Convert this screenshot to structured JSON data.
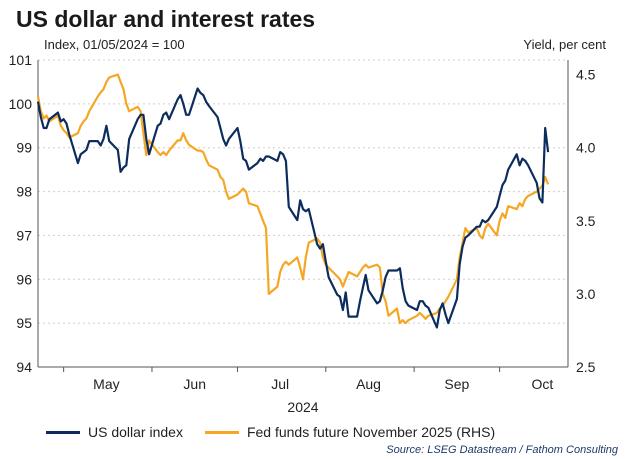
{
  "title": "US dollar and interest rates",
  "subtitle_left": "Index, 01/05/2024 = 100",
  "subtitle_right": "Yield, per cent",
  "source": "Source: LSEG Datastream / Fathom Consulting",
  "colors": {
    "dollar": "#0d2c5e",
    "fed": "#f5a623",
    "grid": "#cfcfcf"
  },
  "chart_data": {
    "type": "line",
    "xlabel": "2024",
    "x_ticks": [
      "May",
      "Jun",
      "Jul",
      "Aug",
      "Sep",
      "Oct"
    ],
    "x_range": [
      "2024-04-22",
      "2024-10-25"
    ],
    "left_axis": {
      "ylim": [
        94,
        101
      ],
      "ticks": [
        "94",
        "95",
        "96",
        "97",
        "98",
        "99",
        "100",
        "101"
      ]
    },
    "right_axis": {
      "ylim": [
        2.5,
        4.6
      ],
      "ticks": [
        "2.5",
        "3.0",
        "3.5",
        "4.0",
        "4.5"
      ]
    },
    "grid": "horizontal dotted",
    "legend_position": "bottom",
    "series": [
      {
        "name": "US dollar index",
        "axis": "left",
        "color": "#0d2c5e",
        "points": [
          [
            "2024-04-22",
            100.05
          ],
          [
            "2024-04-23",
            99.7
          ],
          [
            "2024-04-24",
            99.45
          ],
          [
            "2024-04-25",
            99.45
          ],
          [
            "2024-04-26",
            99.65
          ],
          [
            "2024-04-29",
            99.8
          ],
          [
            "2024-04-30",
            99.6
          ],
          [
            "2024-05-01",
            99.65
          ],
          [
            "2024-05-02",
            99.55
          ],
          [
            "2024-05-03",
            99.3
          ],
          [
            "2024-05-06",
            98.65
          ],
          [
            "2024-05-07",
            98.85
          ],
          [
            "2024-05-08",
            98.9
          ],
          [
            "2024-05-09",
            98.95
          ],
          [
            "2024-05-10",
            99.15
          ],
          [
            "2024-05-13",
            99.15
          ],
          [
            "2024-05-14",
            99.05
          ],
          [
            "2024-05-15",
            99.2
          ],
          [
            "2024-05-16",
            99.5
          ],
          [
            "2024-05-17",
            99.15
          ],
          [
            "2024-05-20",
            98.95
          ],
          [
            "2024-05-21",
            98.45
          ],
          [
            "2024-05-22",
            98.55
          ],
          [
            "2024-05-23",
            98.6
          ],
          [
            "2024-05-24",
            99.2
          ],
          [
            "2024-05-27",
            99.65
          ],
          [
            "2024-05-28",
            99.75
          ],
          [
            "2024-05-29",
            99.75
          ],
          [
            "2024-05-30",
            99.2
          ],
          [
            "2024-05-31",
            98.85
          ],
          [
            "2024-06-03",
            99.5
          ],
          [
            "2024-06-04",
            99.55
          ],
          [
            "2024-06-05",
            99.75
          ],
          [
            "2024-06-06",
            99.8
          ],
          [
            "2024-06-07",
            99.65
          ],
          [
            "2024-06-10",
            100.1
          ],
          [
            "2024-06-11",
            100.2
          ],
          [
            "2024-06-12",
            100.0
          ],
          [
            "2024-06-13",
            99.75
          ],
          [
            "2024-06-14",
            99.75
          ],
          [
            "2024-06-17",
            100.35
          ],
          [
            "2024-06-18",
            100.25
          ],
          [
            "2024-06-19",
            100.2
          ],
          [
            "2024-06-20",
            100.05
          ],
          [
            "2024-06-21",
            99.95
          ],
          [
            "2024-06-24",
            99.7
          ],
          [
            "2024-06-25",
            99.45
          ],
          [
            "2024-06-26",
            99.2
          ],
          [
            "2024-06-27",
            99.05
          ],
          [
            "2024-06-28",
            99.2
          ],
          [
            "2024-07-01",
            99.45
          ],
          [
            "2024-07-02",
            99.15
          ],
          [
            "2024-07-03",
            98.75
          ],
          [
            "2024-07-04",
            98.7
          ],
          [
            "2024-07-05",
            98.5
          ],
          [
            "2024-07-08",
            98.65
          ],
          [
            "2024-07-09",
            98.75
          ],
          [
            "2024-07-10",
            98.7
          ],
          [
            "2024-07-11",
            98.8
          ],
          [
            "2024-07-12",
            98.8
          ],
          [
            "2024-07-15",
            98.7
          ],
          [
            "2024-07-16",
            98.9
          ],
          [
            "2024-07-17",
            98.85
          ],
          [
            "2024-07-18",
            98.7
          ],
          [
            "2024-07-19",
            97.65
          ],
          [
            "2024-07-22",
            97.35
          ],
          [
            "2024-07-23",
            97.8
          ],
          [
            "2024-07-24",
            97.6
          ],
          [
            "2024-07-25",
            97.55
          ],
          [
            "2024-07-26",
            97.6
          ],
          [
            "2024-07-29",
            96.8
          ],
          [
            "2024-07-30",
            96.7
          ],
          [
            "2024-07-31",
            96.8
          ],
          [
            "2024-08-01",
            96.4
          ],
          [
            "2024-08-02",
            96.05
          ],
          [
            "2024-08-05",
            95.65
          ],
          [
            "2024-08-06",
            95.6
          ],
          [
            "2024-08-07",
            95.3
          ],
          [
            "2024-08-08",
            95.7
          ],
          [
            "2024-08-09",
            95.15
          ],
          [
            "2024-08-12",
            95.15
          ],
          [
            "2024-08-13",
            95.5
          ],
          [
            "2024-08-14",
            95.8
          ],
          [
            "2024-08-15",
            96.1
          ],
          [
            "2024-08-16",
            95.75
          ],
          [
            "2024-08-19",
            95.45
          ],
          [
            "2024-08-20",
            95.5
          ],
          [
            "2024-08-21",
            95.75
          ],
          [
            "2024-08-22",
            96.05
          ],
          [
            "2024-08-23",
            96.2
          ],
          [
            "2024-08-26",
            96.2
          ],
          [
            "2024-08-27",
            96.25
          ],
          [
            "2024-08-28",
            95.8
          ],
          [
            "2024-08-29",
            95.5
          ],
          [
            "2024-08-30",
            95.4
          ],
          [
            "2024-09-02",
            95.3
          ],
          [
            "2024-09-03",
            95.5
          ],
          [
            "2024-09-04",
            95.5
          ],
          [
            "2024-09-05",
            95.4
          ],
          [
            "2024-09-06",
            95.35
          ],
          [
            "2024-09-09",
            94.9
          ],
          [
            "2024-09-10",
            95.3
          ],
          [
            "2024-09-11",
            95.45
          ],
          [
            "2024-09-12",
            95.2
          ],
          [
            "2024-09-13",
            95.0
          ],
          [
            "2024-09-16",
            95.55
          ],
          [
            "2024-09-17",
            96.35
          ],
          [
            "2024-09-18",
            96.75
          ],
          [
            "2024-09-19",
            96.95
          ],
          [
            "2024-09-20",
            97.0
          ],
          [
            "2024-09-23",
            97.2
          ],
          [
            "2024-09-24",
            97.2
          ],
          [
            "2024-09-25",
            97.35
          ],
          [
            "2024-09-26",
            97.3
          ],
          [
            "2024-09-27",
            97.35
          ],
          [
            "2024-09-30",
            97.65
          ],
          [
            "2024-10-01",
            97.9
          ],
          [
            "2024-10-02",
            98.15
          ],
          [
            "2024-10-03",
            98.25
          ],
          [
            "2024-10-04",
            98.5
          ],
          [
            "2024-10-07",
            98.85
          ],
          [
            "2024-10-08",
            98.6
          ],
          [
            "2024-10-09",
            98.75
          ],
          [
            "2024-10-10",
            98.7
          ],
          [
            "2024-10-11",
            98.6
          ],
          [
            "2024-10-14",
            98.2
          ],
          [
            "2024-10-15",
            97.85
          ],
          [
            "2024-10-16",
            97.75
          ],
          [
            "2024-10-17",
            99.45
          ],
          [
            "2024-10-18",
            98.9
          ]
        ]
      },
      {
        "name": "Fed funds future November 2025 (RHS)",
        "axis": "right",
        "color": "#f5a623",
        "points": [
          [
            "2024-04-22",
            4.35
          ],
          [
            "2024-04-23",
            4.25
          ],
          [
            "2024-04-24",
            4.2
          ],
          [
            "2024-04-25",
            4.22
          ],
          [
            "2024-04-26",
            4.18
          ],
          [
            "2024-04-29",
            4.22
          ],
          [
            "2024-04-30",
            4.15
          ],
          [
            "2024-05-01",
            4.12
          ],
          [
            "2024-05-02",
            4.1
          ],
          [
            "2024-05-03",
            4.07
          ],
          [
            "2024-05-06",
            4.1
          ],
          [
            "2024-05-07",
            4.15
          ],
          [
            "2024-05-08",
            4.18
          ],
          [
            "2024-05-09",
            4.2
          ],
          [
            "2024-05-10",
            4.25
          ],
          [
            "2024-05-13",
            4.35
          ],
          [
            "2024-05-14",
            4.38
          ],
          [
            "2024-05-15",
            4.4
          ],
          [
            "2024-05-16",
            4.45
          ],
          [
            "2024-05-17",
            4.48
          ],
          [
            "2024-05-20",
            4.5
          ],
          [
            "2024-05-21",
            4.45
          ],
          [
            "2024-05-22",
            4.4
          ],
          [
            "2024-05-23",
            4.3
          ],
          [
            "2024-05-24",
            4.25
          ],
          [
            "2024-05-27",
            4.28
          ],
          [
            "2024-05-28",
            4.25
          ],
          [
            "2024-05-29",
            4.1
          ],
          [
            "2024-05-30",
            3.95
          ],
          [
            "2024-05-31",
            4.05
          ],
          [
            "2024-06-03",
            3.97
          ],
          [
            "2024-06-04",
            3.95
          ],
          [
            "2024-06-05",
            3.97
          ],
          [
            "2024-06-06",
            3.95
          ],
          [
            "2024-06-07",
            3.98
          ],
          [
            "2024-06-10",
            4.05
          ],
          [
            "2024-06-11",
            4.05
          ],
          [
            "2024-06-12",
            4.1
          ],
          [
            "2024-06-13",
            4.05
          ],
          [
            "2024-06-14",
            4.02
          ],
          [
            "2024-06-17",
            3.98
          ],
          [
            "2024-06-18",
            3.98
          ],
          [
            "2024-06-19",
            3.97
          ],
          [
            "2024-06-20",
            3.92
          ],
          [
            "2024-06-21",
            3.88
          ],
          [
            "2024-06-24",
            3.85
          ],
          [
            "2024-06-25",
            3.8
          ],
          [
            "2024-06-26",
            3.78
          ],
          [
            "2024-06-27",
            3.7
          ],
          [
            "2024-06-28",
            3.65
          ],
          [
            "2024-07-01",
            3.68
          ],
          [
            "2024-07-02",
            3.7
          ],
          [
            "2024-07-03",
            3.72
          ],
          [
            "2024-07-04",
            3.7
          ],
          [
            "2024-07-05",
            3.62
          ],
          [
            "2024-07-08",
            3.6
          ],
          [
            "2024-07-09",
            3.55
          ],
          [
            "2024-07-10",
            3.5
          ],
          [
            "2024-07-11",
            3.45
          ],
          [
            "2024-07-12",
            3.0
          ],
          [
            "2024-07-15",
            3.05
          ],
          [
            "2024-07-16",
            3.15
          ],
          [
            "2024-07-17",
            3.2
          ],
          [
            "2024-07-18",
            3.22
          ],
          [
            "2024-07-19",
            3.2
          ],
          [
            "2024-07-22",
            3.25
          ],
          [
            "2024-07-23",
            3.18
          ],
          [
            "2024-07-24",
            3.1
          ],
          [
            "2024-07-25",
            3.25
          ],
          [
            "2024-07-26",
            3.35
          ],
          [
            "2024-07-29",
            3.38
          ],
          [
            "2024-07-30",
            3.35
          ],
          [
            "2024-07-31",
            3.25
          ],
          [
            "2024-08-01",
            3.2
          ],
          [
            "2024-08-02",
            3.18
          ],
          [
            "2024-08-05",
            3.12
          ],
          [
            "2024-08-06",
            3.1
          ],
          [
            "2024-08-07",
            3.05
          ],
          [
            "2024-08-08",
            3.1
          ],
          [
            "2024-08-09",
            3.15
          ],
          [
            "2024-08-12",
            3.12
          ],
          [
            "2024-08-13",
            3.15
          ],
          [
            "2024-08-14",
            3.18
          ],
          [
            "2024-08-15",
            3.2
          ],
          [
            "2024-08-16",
            3.18
          ],
          [
            "2024-08-19",
            3.2
          ],
          [
            "2024-08-20",
            3.18
          ],
          [
            "2024-08-21",
            3.0
          ],
          [
            "2024-08-22",
            2.95
          ],
          [
            "2024-08-23",
            2.85
          ],
          [
            "2024-08-26",
            2.9
          ],
          [
            "2024-08-27",
            2.8
          ],
          [
            "2024-08-28",
            2.82
          ],
          [
            "2024-08-29",
            2.8
          ],
          [
            "2024-08-30",
            2.82
          ],
          [
            "2024-09-02",
            2.85
          ],
          [
            "2024-09-03",
            2.87
          ],
          [
            "2024-09-04",
            2.85
          ],
          [
            "2024-09-05",
            2.83
          ],
          [
            "2024-09-06",
            2.85
          ],
          [
            "2024-09-09",
            2.87
          ],
          [
            "2024-09-10",
            2.9
          ],
          [
            "2024-09-11",
            2.92
          ],
          [
            "2024-09-12",
            2.95
          ],
          [
            "2024-09-13",
            2.98
          ],
          [
            "2024-09-16",
            3.1
          ],
          [
            "2024-09-17",
            3.25
          ],
          [
            "2024-09-18",
            3.35
          ],
          [
            "2024-09-19",
            3.45
          ],
          [
            "2024-09-20",
            3.42
          ],
          [
            "2024-09-23",
            3.45
          ],
          [
            "2024-09-24",
            3.4
          ],
          [
            "2024-09-25",
            3.38
          ],
          [
            "2024-09-26",
            3.45
          ],
          [
            "2024-09-27",
            3.48
          ],
          [
            "2024-09-30",
            3.4
          ],
          [
            "2024-10-01",
            3.5
          ],
          [
            "2024-10-02",
            3.55
          ],
          [
            "2024-10-03",
            3.52
          ],
          [
            "2024-10-04",
            3.6
          ],
          [
            "2024-10-07",
            3.58
          ],
          [
            "2024-10-08",
            3.62
          ],
          [
            "2024-10-09",
            3.6
          ],
          [
            "2024-10-10",
            3.65
          ],
          [
            "2024-10-11",
            3.67
          ],
          [
            "2024-10-14",
            3.7
          ],
          [
            "2024-10-15",
            3.72
          ],
          [
            "2024-10-16",
            3.74
          ],
          [
            "2024-10-17",
            3.8
          ],
          [
            "2024-10-18",
            3.75
          ]
        ]
      }
    ]
  }
}
